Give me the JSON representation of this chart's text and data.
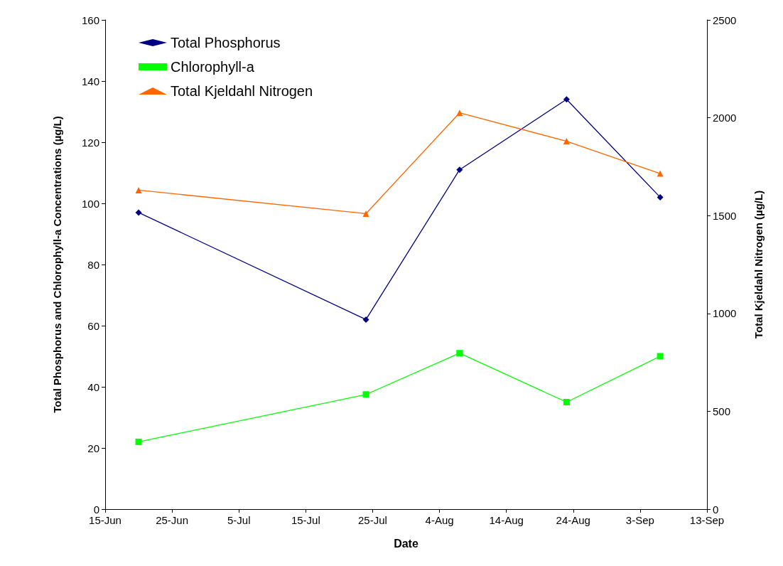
{
  "chart_data": {
    "type": "line",
    "xlabel": "Date",
    "ylabel": "Total Phosphorus and Chlorophyll-a Concentrations (µg/L)",
    "y2label": "Total Kjeldahl Nitrogen (µg/L)",
    "x": [
      "--06-20",
      "--07-24",
      "--08-07",
      "--08-23",
      "--09-06"
    ],
    "series": [
      {
        "name": "Total Phosphorus",
        "color": "#000080",
        "marker": "diamond",
        "values": [
          97,
          62,
          111,
          134,
          102
        ]
      },
      {
        "name": "Chlorophyll-a",
        "color": "#00ff00",
        "marker": "square",
        "values": [
          22,
          37.5,
          51,
          35,
          50
        ]
      },
      {
        "name": "Total Kjeldahl Nitrogen",
        "color": "#ff6600",
        "marker": "triangle",
        "axis": "y2",
        "values": [
          1630,
          1510,
          2025,
          1880,
          1715
        ]
      }
    ],
    "xlim": [
      "--06-15",
      "--09-13"
    ],
    "xticks": [
      {
        "value": "--06-15",
        "label": "15-Jun"
      },
      {
        "value": "--06-25",
        "label": "25-Jun"
      },
      {
        "value": "--07-05",
        "label": "5-Jul"
      },
      {
        "value": "--07-15",
        "label": "15-Jul"
      },
      {
        "value": "--07-25",
        "label": "25-Jul"
      },
      {
        "value": "--08-04",
        "label": "4-Aug"
      },
      {
        "value": "--08-14",
        "label": "14-Aug"
      },
      {
        "value": "--08-24",
        "label": "24-Aug"
      },
      {
        "value": "--09-03",
        "label": "3-Sep"
      },
      {
        "value": "--09-13",
        "label": "13-Sep"
      }
    ],
    "ylim": [
      0,
      160
    ],
    "yticks": [
      0,
      20,
      40,
      60,
      80,
      100,
      120,
      140,
      160
    ],
    "y2lim": [
      0,
      2500
    ],
    "y2ticks": [
      0,
      500,
      1000,
      1500,
      2000,
      2500
    ],
    "grid": false,
    "legend": "top left"
  }
}
